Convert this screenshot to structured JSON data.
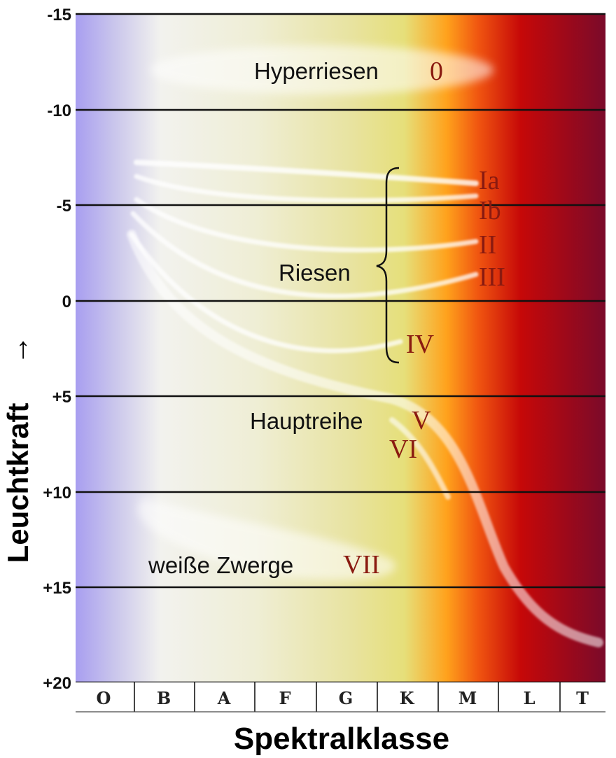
{
  "diagram": {
    "y_axis": {
      "title": "Leuchtkraft",
      "arrow": "→",
      "ticks": [
        "-15",
        "-10",
        "-5",
        "0",
        "+5",
        "+10",
        "+15",
        "+20"
      ]
    },
    "x_axis": {
      "title": "Spektralklasse",
      "ticks": [
        "O",
        "B",
        "A",
        "F",
        "G",
        "K",
        "M",
        "L",
        "T"
      ]
    },
    "regions": {
      "hyper": "Hyperriesen",
      "giants": "Riesen",
      "main": "Hauptreihe",
      "dwarfs": "weiße Zwerge"
    },
    "classes": {
      "zero": "0",
      "ia": "Ia",
      "ib": "Ib",
      "ii": "II",
      "iii": "III",
      "iv": "IV",
      "v": "V",
      "vi": "VI",
      "vii": "VII"
    },
    "colors": {
      "hot": "#a89ef0",
      "white": "#f2f2ee",
      "yellow": "#e6df7a",
      "orange": "#ff9a12",
      "red": "#c60808",
      "cool": "#7a0a2a",
      "class_label": "#8a1a10"
    }
  }
}
